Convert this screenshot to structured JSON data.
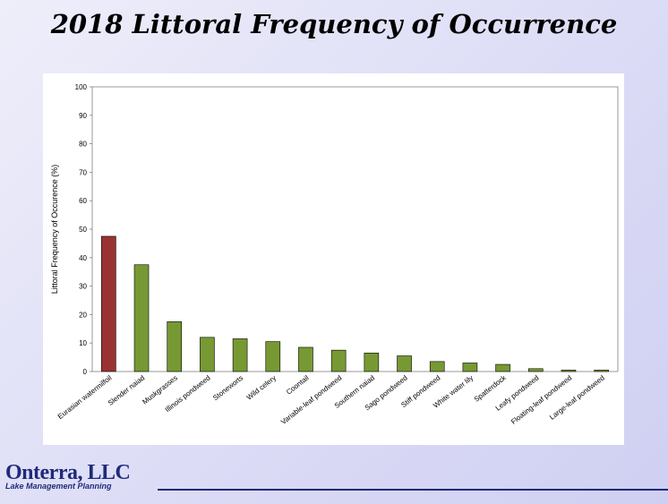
{
  "chart_data": {
    "type": "bar",
    "title": "2018 Littoral Frequency of Occurrence",
    "y_label": "Littoral Frequency of Occurence (%)",
    "categories": [
      "Eurasian watermilfoil",
      "Slender naiad",
      "Muskgrasses",
      "Illinois pondweed",
      "Stoneworts",
      "Wild celery",
      "Coontail",
      "Variable-leaf pondweed",
      "Southern naiad",
      "Sago pondweed",
      "Stiff pondweed",
      "White water lily",
      "Spatterdock",
      "Leafy pondweed",
      "Floating-leaf pondweed",
      "Large-leaf pondweed"
    ],
    "values": [
      47.5,
      37.5,
      17.5,
      12,
      11.5,
      10.5,
      8.5,
      7.5,
      6.5,
      5.5,
      3.5,
      3,
      2.5,
      1,
      0.5,
      0.5
    ],
    "colors": [
      "#993333",
      "#779933",
      "#779933",
      "#779933",
      "#779933",
      "#779933",
      "#779933",
      "#779933",
      "#779933",
      "#779933",
      "#779933",
      "#779933",
      "#779933",
      "#779933",
      "#779933",
      "#779933"
    ],
    "ylim": [
      0,
      100
    ],
    "yticks": [
      0,
      10,
      20,
      30,
      40,
      50,
      60,
      70,
      80,
      90,
      100
    ],
    "grid": false
  },
  "footer": {
    "company": "Onterra, LLC",
    "tagline": "Lake Management Planning"
  }
}
